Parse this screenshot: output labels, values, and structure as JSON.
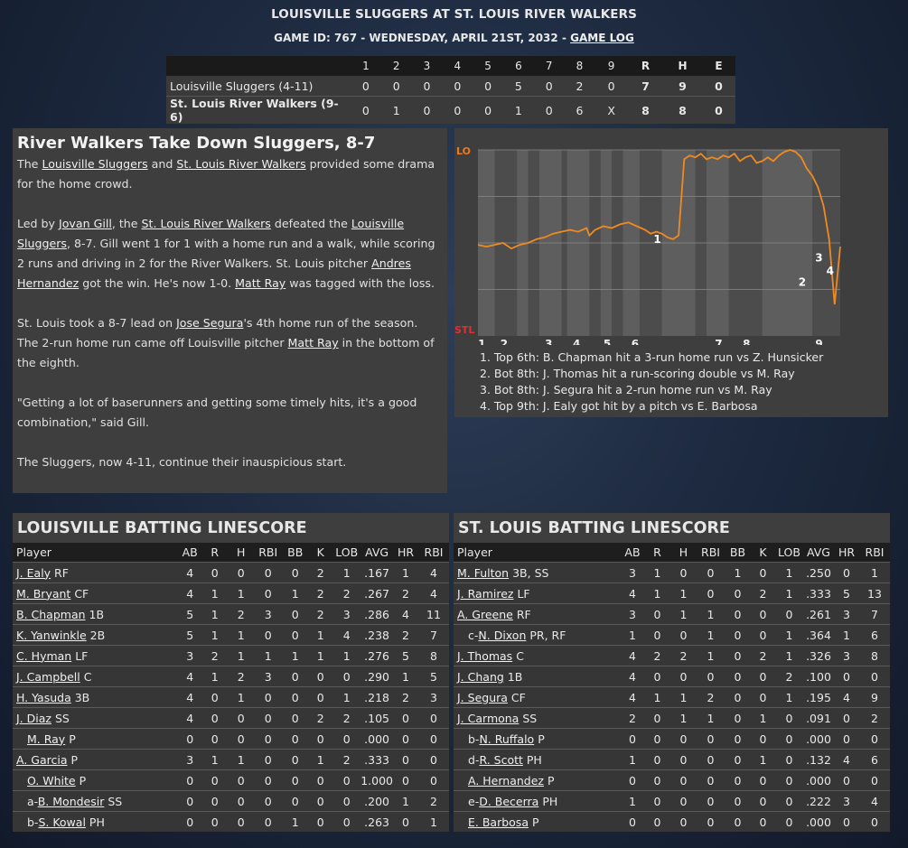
{
  "header": {
    "title": "LOUISVILLE SLUGGERS AT ST. LOUIS RIVER WALKERS",
    "game_info": "GAME ID: 767 - WEDNESDAY, APRIL 21ST, 2032 -",
    "game_log_link": "GAME LOG"
  },
  "linescore": {
    "columns": [
      "1",
      "2",
      "3",
      "4",
      "5",
      "6",
      "7",
      "8",
      "9",
      "R",
      "H",
      "E"
    ],
    "teams": [
      {
        "name": "Louisville Sluggers (4-11)",
        "innings": [
          "0",
          "0",
          "0",
          "0",
          "0",
          "5",
          "0",
          "2",
          "0"
        ],
        "R": "7",
        "H": "9",
        "E": "0"
      },
      {
        "name": "St. Louis River Walkers (9-6)",
        "innings": [
          "0",
          "1",
          "0",
          "0",
          "0",
          "1",
          "0",
          "6",
          "X"
        ],
        "R": "8",
        "H": "8",
        "E": "0"
      }
    ]
  },
  "story": {
    "headline": "River Walkers Take Down Sluggers, 8-7",
    "p1": {
      "t0": "The ",
      "l0": "Louisville Sluggers",
      "t1": " and ",
      "l1": "St. Louis River Walkers",
      "t2": " provided some drama for the home crowd."
    },
    "p2": {
      "t0": "Led by ",
      "l0": "Jovan Gill",
      "t1": ", the ",
      "l1": "St. Louis River Walkers",
      "t2": " defeated the ",
      "l2": "Louisville Sluggers",
      "t3": ", 8-7. Gill went 1 for 1 with a home run and a walk, while scoring 2 runs and driving in 2 for the River Walkers. St. Louis pitcher ",
      "l3": "Andres Hernandez",
      "t4": " got the win. He's now 1-0. ",
      "l4": "Matt Ray",
      "t5": " was tagged with the loss."
    },
    "p3": {
      "t0": "St. Louis took a 8-7 lead on ",
      "l0": "Jose Segura",
      "t1": "'s 4th home run of the season. The 2-run home run came off Louisville pitcher ",
      "l1": "Matt Ray",
      "t2": " in the bottom of the eighth."
    },
    "p4": "\"Getting a lot of baserunners and getting some timely hits, it's a good combination,\" said Gill.",
    "p5": "The Sluggers, now 4-11, continue their inauspicious start."
  },
  "chart_data": {
    "type": "line",
    "y_top_label": "LO",
    "y_bottom_label": "STL",
    "y_top_color": "#f07818",
    "y_bottom_color": "#e03030",
    "line_color": "#f08a20",
    "x_labels": [
      "1",
      "2",
      "3",
      "4",
      "5",
      "6",
      "7",
      "8",
      "9"
    ],
    "x_label_pos": [
      0.1,
      0.9,
      2.5,
      3.5,
      4.6,
      5.6,
      8.6,
      9.6,
      12.2
    ],
    "inning_bands": [
      [
        0,
        0.6
      ],
      [
        1.4,
        1.8
      ],
      [
        2.2,
        3.0
      ],
      [
        3.2,
        4.0
      ],
      [
        4.4,
        4.8
      ],
      [
        5.2,
        5.8
      ],
      [
        6.6,
        7.8
      ],
      [
        8.2,
        9.0
      ],
      [
        10.2,
        12.0
      ]
    ],
    "annotation_x": [
      6.3,
      11.5,
      12.1,
      12.5
    ],
    "annotation_y": [
      0.5,
      0.27,
      0.4,
      0.33
    ],
    "annotation_labels": [
      "1",
      "2",
      "3",
      "4"
    ],
    "series": {
      "x": [
        0,
        0.3,
        0.6,
        0.9,
        1.2,
        1.5,
        1.8,
        2.1,
        2.4,
        2.7,
        3.0,
        3.3,
        3.6,
        3.9,
        4.0,
        4.2,
        4.5,
        4.8,
        5.1,
        5.4,
        5.7,
        6.0,
        6.2,
        6.4,
        6.6,
        6.8,
        7.0,
        7.2,
        7.4,
        7.6,
        7.8,
        8.0,
        8.2,
        8.4,
        8.6,
        8.8,
        9.0,
        9.2,
        9.4,
        9.6,
        9.8,
        10.0,
        10.2,
        10.4,
        10.6,
        10.8,
        11.0,
        11.2,
        11.4,
        11.6,
        11.8,
        12.0,
        12.2,
        12.4,
        12.6,
        12.8,
        13.0
      ],
      "y": [
        0.49,
        0.48,
        0.49,
        0.5,
        0.47,
        0.49,
        0.5,
        0.52,
        0.53,
        0.55,
        0.56,
        0.57,
        0.56,
        0.58,
        0.54,
        0.57,
        0.59,
        0.58,
        0.6,
        0.61,
        0.59,
        0.57,
        0.55,
        0.56,
        0.55,
        0.53,
        0.52,
        0.54,
        0.95,
        0.97,
        0.96,
        0.98,
        0.95,
        0.96,
        0.95,
        0.97,
        0.96,
        0.98,
        0.94,
        0.96,
        0.97,
        0.93,
        0.94,
        0.96,
        0.94,
        0.97,
        0.99,
        1.0,
        0.99,
        0.96,
        0.9,
        0.86,
        0.8,
        0.7,
        0.52,
        0.17,
        0.48
      ]
    },
    "notes": [
      "1. Top 6th: B. Chapman hit a 3-run home run vs Z. Hunsicker",
      "2. Bot 8th: J. Thomas hit a run-scoring double vs M. Ray",
      "3. Bot 8th: J. Segura hit a 2-run home run vs M. Ray",
      "4. Top 9th: J. Ealy got hit by a pitch vs E. Barbosa"
    ]
  },
  "louisville": {
    "title": "LOUISVILLE BATTING LINESCORE",
    "columns": [
      "Player",
      "AB",
      "R",
      "H",
      "RBI",
      "BB",
      "K",
      "LOB",
      "AVG",
      "HR",
      "RBI"
    ],
    "rows": [
      {
        "pre": "",
        "name": "J. Ealy",
        "pos": "RF",
        "stats": [
          "4",
          "0",
          "0",
          "0",
          "0",
          "2",
          "1",
          ".167",
          "1",
          "4"
        ]
      },
      {
        "pre": "",
        "name": "M. Bryant",
        "pos": "CF",
        "stats": [
          "4",
          "1",
          "1",
          "0",
          "1",
          "2",
          "2",
          ".267",
          "2",
          "4"
        ]
      },
      {
        "pre": "",
        "name": "B. Chapman",
        "pos": "1B",
        "stats": [
          "5",
          "1",
          "2",
          "3",
          "0",
          "2",
          "3",
          ".286",
          "4",
          "11"
        ]
      },
      {
        "pre": "",
        "name": "K. Yanwinkle",
        "pos": "2B",
        "stats": [
          "5",
          "1",
          "1",
          "0",
          "0",
          "1",
          "4",
          ".238",
          "2",
          "7"
        ]
      },
      {
        "pre": "",
        "name": "C. Hyman",
        "pos": "LF",
        "stats": [
          "3",
          "2",
          "1",
          "1",
          "1",
          "1",
          "1",
          ".276",
          "5",
          "8"
        ]
      },
      {
        "pre": "",
        "name": "J. Campbell",
        "pos": "C",
        "stats": [
          "4",
          "1",
          "2",
          "3",
          "0",
          "0",
          "0",
          ".290",
          "1",
          "5"
        ]
      },
      {
        "pre": "",
        "name": "H. Yasuda",
        "pos": "3B",
        "stats": [
          "4",
          "0",
          "1",
          "0",
          "0",
          "0",
          "1",
          ".218",
          "2",
          "3"
        ]
      },
      {
        "pre": "",
        "name": "J. Diaz",
        "pos": "SS",
        "stats": [
          "4",
          "0",
          "0",
          "0",
          "0",
          "2",
          "2",
          ".105",
          "0",
          "0"
        ]
      },
      {
        "pre": "",
        "name": "M. Ray",
        "pos": "P",
        "sub": true,
        "stats": [
          "0",
          "0",
          "0",
          "0",
          "0",
          "0",
          "0",
          ".000",
          "0",
          "0"
        ]
      },
      {
        "pre": "",
        "name": "A. Garcia",
        "pos": "P",
        "stats": [
          "3",
          "1",
          "1",
          "0",
          "0",
          "1",
          "2",
          ".333",
          "0",
          "0"
        ]
      },
      {
        "pre": "",
        "name": "O. White",
        "pos": "P",
        "sub": true,
        "stats": [
          "0",
          "0",
          "0",
          "0",
          "0",
          "0",
          "0",
          "1.000",
          "0",
          "0"
        ]
      },
      {
        "pre": "a-",
        "name": "B. Mondesir",
        "pos": "SS",
        "sub": true,
        "stats": [
          "0",
          "0",
          "0",
          "0",
          "0",
          "0",
          "0",
          ".200",
          "1",
          "2"
        ]
      },
      {
        "pre": "b-",
        "name": "S. Kowal",
        "pos": "PH",
        "sub": true,
        "stats": [
          "0",
          "0",
          "0",
          "0",
          "1",
          "0",
          "0",
          ".263",
          "0",
          "1"
        ]
      }
    ]
  },
  "stlouis": {
    "title": "ST. LOUIS BATTING LINESCORE",
    "columns": [
      "Player",
      "AB",
      "R",
      "H",
      "RBI",
      "BB",
      "K",
      "LOB",
      "AVG",
      "HR",
      "RBI"
    ],
    "rows": [
      {
        "pre": "",
        "name": "M. Fulton",
        "pos": "3B, SS",
        "stats": [
          "3",
          "1",
          "0",
          "0",
          "1",
          "0",
          "1",
          ".250",
          "0",
          "1"
        ]
      },
      {
        "pre": "",
        "name": "J. Ramirez",
        "pos": "LF",
        "stats": [
          "4",
          "1",
          "1",
          "0",
          "0",
          "2",
          "1",
          ".333",
          "5",
          "13"
        ]
      },
      {
        "pre": "",
        "name": "A. Greene",
        "pos": "RF",
        "stats": [
          "3",
          "0",
          "1",
          "1",
          "0",
          "0",
          "0",
          ".261",
          "3",
          "7"
        ]
      },
      {
        "pre": "c-",
        "name": "N. Dixon",
        "pos": "PR, RF",
        "sub": true,
        "stats": [
          "1",
          "0",
          "0",
          "1",
          "0",
          "0",
          "1",
          ".364",
          "1",
          "6"
        ]
      },
      {
        "pre": "",
        "name": "J. Thomas",
        "pos": "C",
        "stats": [
          "4",
          "2",
          "2",
          "1",
          "0",
          "2",
          "1",
          ".326",
          "3",
          "8"
        ]
      },
      {
        "pre": "",
        "name": "J. Chang",
        "pos": "1B",
        "stats": [
          "4",
          "0",
          "0",
          "0",
          "0",
          "0",
          "2",
          ".100",
          "0",
          "0"
        ]
      },
      {
        "pre": "",
        "name": "J. Segura",
        "pos": "CF",
        "stats": [
          "4",
          "1",
          "1",
          "2",
          "0",
          "0",
          "1",
          ".195",
          "4",
          "9"
        ]
      },
      {
        "pre": "",
        "name": "J. Carmona",
        "pos": "SS",
        "stats": [
          "2",
          "0",
          "1",
          "1",
          "0",
          "1",
          "0",
          ".091",
          "0",
          "2"
        ]
      },
      {
        "pre": "b-",
        "name": "N. Ruffalo",
        "pos": "P",
        "sub": true,
        "stats": [
          "0",
          "0",
          "0",
          "0",
          "0",
          "0",
          "0",
          ".000",
          "0",
          "0"
        ]
      },
      {
        "pre": "d-",
        "name": "R. Scott",
        "pos": "PH",
        "sub": true,
        "stats": [
          "1",
          "0",
          "0",
          "0",
          "0",
          "1",
          "0",
          ".132",
          "4",
          "6"
        ]
      },
      {
        "pre": "",
        "name": "A. Hernandez",
        "pos": "P",
        "sub": true,
        "stats": [
          "0",
          "0",
          "0",
          "0",
          "0",
          "0",
          "0",
          ".000",
          "0",
          "0"
        ]
      },
      {
        "pre": "e-",
        "name": "D. Becerra",
        "pos": "PH",
        "sub": true,
        "stats": [
          "1",
          "0",
          "0",
          "0",
          "0",
          "0",
          "0",
          ".222",
          "3",
          "4"
        ]
      },
      {
        "pre": "",
        "name": "E. Barbosa",
        "pos": "P",
        "sub": true,
        "stats": [
          "0",
          "0",
          "0",
          "0",
          "0",
          "0",
          "0",
          ".000",
          "0",
          "0"
        ]
      }
    ]
  }
}
